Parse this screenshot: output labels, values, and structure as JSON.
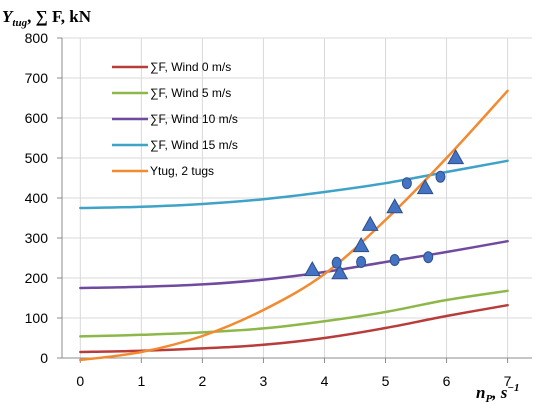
{
  "chart_data": {
    "type": "line",
    "y_axis_title": {
      "main": "Y",
      "subscript": "tug",
      "rest": ", ∑ F, kN"
    },
    "x_axis_title": {
      "main": "n",
      "subscript": "P",
      "rest": ", s",
      "superscript": "−1"
    },
    "x_ticks": [
      0,
      1,
      2,
      3,
      4,
      5,
      6,
      7
    ],
    "y_ticks": [
      0,
      100,
      200,
      300,
      400,
      500,
      600,
      700,
      800
    ],
    "xlim": [
      -0.3,
      7.4
    ],
    "ylim": [
      0,
      800
    ],
    "grid": "horizontal and vertical",
    "legend_position": "upper-left inside plot",
    "series": [
      {
        "name": "∑F, Wind 0 m/s",
        "color": "#b83c3a",
        "x": [
          0,
          1,
          2,
          3,
          4,
          5,
          6,
          7
        ],
        "y": [
          15,
          18,
          24,
          33,
          50,
          75,
          105,
          132
        ]
      },
      {
        "name": "∑F, Wind 5 m/s",
        "color": "#8db748",
        "x": [
          0,
          1,
          2,
          3,
          4,
          5,
          6,
          7
        ],
        "y": [
          54,
          58,
          64,
          74,
          92,
          115,
          145,
          168
        ]
      },
      {
        "name": "∑F, Wind 10 m/s",
        "color": "#6f4a9e",
        "x": [
          0,
          1,
          2,
          3,
          4,
          5,
          6,
          7
        ],
        "y": [
          175,
          178,
          184,
          196,
          215,
          240,
          265,
          292
        ]
      },
      {
        "name": "∑F, Wind 15 m/s",
        "color": "#3fa2c7",
        "x": [
          0,
          1,
          2,
          3,
          4,
          5,
          6,
          7
        ],
        "y": [
          375,
          378,
          385,
          397,
          415,
          437,
          465,
          493
        ]
      },
      {
        "name": "Ytug, 2 tugs",
        "color": "#f28a30",
        "x": [
          0,
          1,
          2,
          3,
          4,
          5,
          6,
          7
        ],
        "y": [
          -5,
          15,
          55,
          120,
          210,
          345,
          500,
          668
        ]
      }
    ],
    "markers": {
      "color": "#4473c4",
      "edge_color": "#2e4e8a",
      "triangles": [
        {
          "x": 3.8,
          "y": 220
        },
        {
          "x": 4.25,
          "y": 212
        },
        {
          "x": 4.6,
          "y": 280
        },
        {
          "x": 4.75,
          "y": 333
        },
        {
          "x": 5.15,
          "y": 377
        },
        {
          "x": 5.65,
          "y": 425
        },
        {
          "x": 6.15,
          "y": 500
        }
      ],
      "circles": [
        {
          "x": 4.2,
          "y": 238
        },
        {
          "x": 4.6,
          "y": 240
        },
        {
          "x": 5.15,
          "y": 245
        },
        {
          "x": 5.35,
          "y": 437
        },
        {
          "x": 5.7,
          "y": 252
        },
        {
          "x": 5.9,
          "y": 453
        }
      ]
    }
  }
}
